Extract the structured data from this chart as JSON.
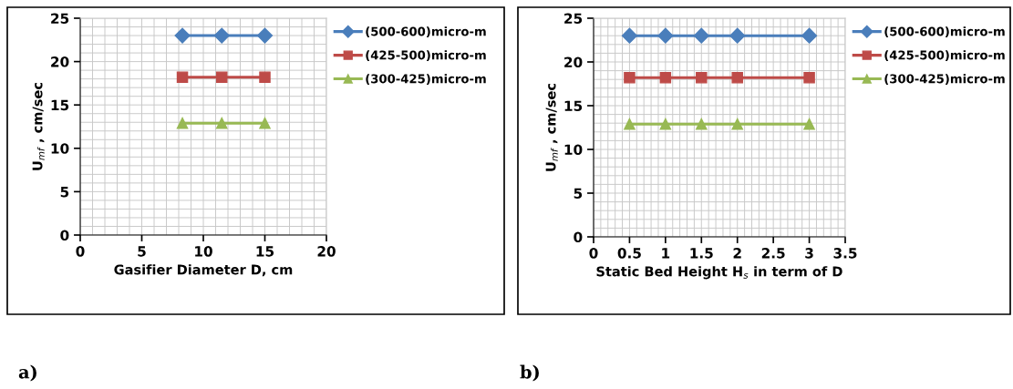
{
  "chart_data": [
    {
      "type": "line",
      "xlabel": "Gasifier Diameter D, cm",
      "ylabel": "U$_{mf}$ , cm/sec",
      "annotations": [
        "a)"
      ],
      "x": [
        8.3,
        11.5,
        15
      ],
      "series": [
        {
          "name": "(500-600)micro-m",
          "color": "#4a7ebb",
          "marker": "diamond",
          "values": [
            23,
            23,
            23
          ]
        },
        {
          "name": "(425-500)micro-m",
          "color": "#be4b48",
          "marker": "square",
          "values": [
            18.2,
            18.2,
            18.2
          ]
        },
        {
          "name": "(300-425)micro-m",
          "color": "#98b954",
          "marker": "triangle",
          "values": [
            12.9,
            12.9,
            12.9
          ]
        }
      ],
      "xlim": [
        0,
        20
      ],
      "xticks": [
        0,
        5,
        10,
        15,
        20
      ],
      "ylim": [
        0,
        25
      ],
      "yticks": [
        0,
        5,
        10,
        15,
        20,
        25
      ],
      "grid": true,
      "legend": "right",
      "line_style": "solid"
    },
    {
      "type": "line",
      "xlabel": "Static Bed Height H$_{s}$ in term of D",
      "ylabel": "U$_{mf}$ , cm/sec",
      "annotations": [
        "b)"
      ],
      "x": [
        0.5,
        1,
        1.5,
        2,
        3
      ],
      "series": [
        {
          "name": "(500-600)micro-m",
          "color": "#4a7ebb",
          "marker": "diamond",
          "values": [
            23,
            23,
            23,
            23,
            23
          ]
        },
        {
          "name": "(425-500)micro-m",
          "color": "#be4b48",
          "marker": "square",
          "values": [
            18.2,
            18.2,
            18.2,
            18.2,
            18.2
          ]
        },
        {
          "name": "(300-425)micro-m",
          "color": "#98b954",
          "marker": "triangle",
          "values": [
            12.9,
            12.9,
            12.9,
            12.9,
            12.9
          ]
        }
      ],
      "xlim": [
        0,
        3.5
      ],
      "xticks": [
        0,
        0.5,
        1,
        1.5,
        2,
        2.5,
        3,
        3.5
      ],
      "ylim": [
        0,
        25
      ],
      "yticks": [
        0,
        5,
        10,
        15,
        20,
        25
      ],
      "grid": true,
      "legend": "right",
      "line_style": "solid"
    }
  ]
}
